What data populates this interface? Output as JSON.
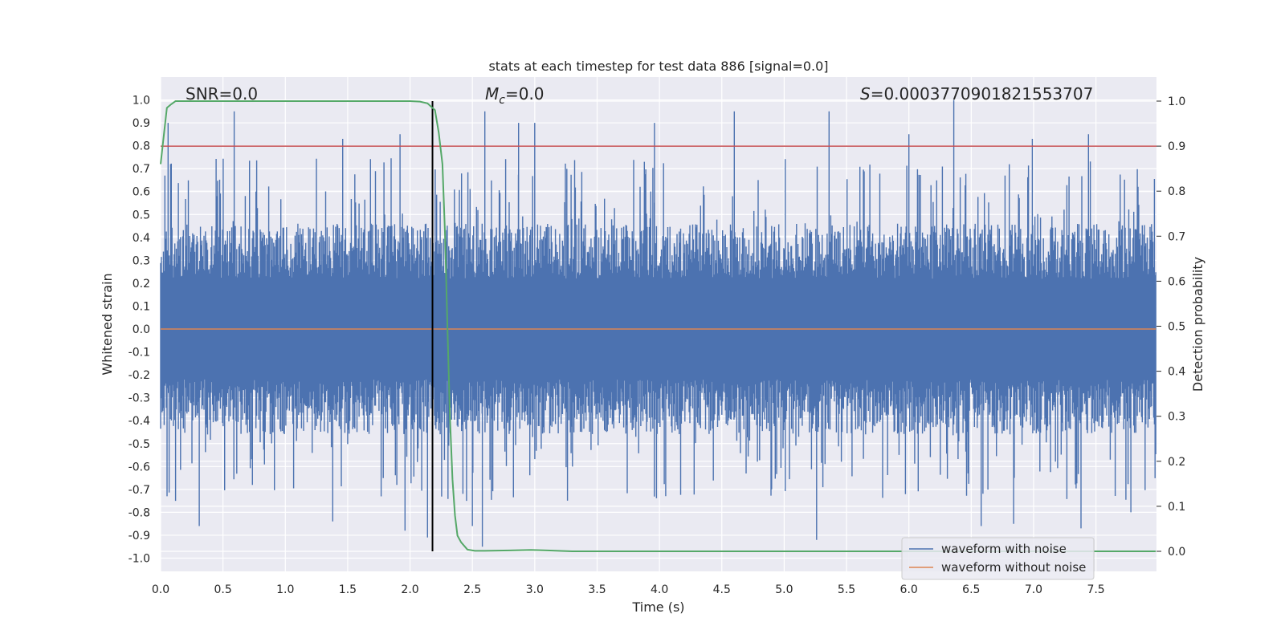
{
  "chart_data": {
    "type": "line",
    "title": "stats at each timestep for test data 886 [signal=0.0]",
    "xlabel": "Time (s)",
    "ylabel_left": "Whitened strain",
    "ylabel_right": "Detection probability",
    "xlim": [
      0.0,
      7.98
    ],
    "ylim_left": [
      -1.05,
      1.05
    ],
    "ylim_right": [
      -0.05,
      1.05
    ],
    "grid": true,
    "x_ticks": [
      0.0,
      0.5,
      1.0,
      1.5,
      2.0,
      2.5,
      3.0,
      3.5,
      4.0,
      4.5,
      5.0,
      5.5,
      6.0,
      6.5,
      7.0,
      7.5
    ],
    "x_tick_labels": [
      "0.0",
      "0.5",
      "1.0",
      "1.5",
      "2.0",
      "2.5",
      "3.0",
      "3.5",
      "4.0",
      "4.5",
      "5.0",
      "5.5",
      "6.0",
      "6.5",
      "7.0",
      "7.5"
    ],
    "y_left_ticks": [
      1.0,
      0.9,
      0.8,
      0.7,
      0.6,
      0.5,
      0.4,
      0.3,
      0.2,
      0.1,
      0.0,
      -0.1,
      -0.2,
      -0.3,
      -0.4,
      -0.5,
      -0.6,
      -0.7,
      -0.8,
      -0.9,
      -1.0
    ],
    "y_left_tick_labels": [
      "1.0",
      "0.9",
      "0.8",
      "0.7",
      "0.6",
      "0.5",
      "0.4",
      "0.3",
      "0.2",
      "0.1",
      "0.0",
      "-0.1",
      "-0.2",
      "-0.3",
      "-0.4",
      "-0.5",
      "-0.6",
      "-0.7",
      "-0.8",
      "-0.9",
      "-1.0"
    ],
    "y_right_ticks": [
      1.0,
      0.9,
      0.8,
      0.7,
      0.6,
      0.5,
      0.4,
      0.3,
      0.2,
      0.1,
      0.0
    ],
    "y_right_tick_labels": [
      "1.0",
      "0.9",
      "0.8",
      "0.7",
      "0.6",
      "0.5",
      "0.4",
      "0.3",
      "0.2",
      "0.1",
      "0.0"
    ],
    "annotations": {
      "snr": "SNR=0.0",
      "mc_symbol": "M",
      "mc_subscript": "c",
      "mc_value": "=0.0",
      "s_symbol": "S",
      "s_value": "=0.0003770901821553707"
    },
    "threshold": {
      "value": 0.9,
      "axis": "right",
      "color": "#c44e52"
    },
    "marker_time": {
      "value": 2.18,
      "color": "#000000"
    },
    "waveform_with_noise": {
      "name": "waveform with noise",
      "color": "#4c72b0",
      "time_range": [
        0.0,
        7.98
      ],
      "typical_envelope": [
        -0.4,
        0.4
      ],
      "extreme_peaks": [
        {
          "t": 0.06,
          "v": 0.9
        },
        {
          "t": 0.59,
          "v": 0.95
        },
        {
          "t": 1.46,
          "v": 0.83
        },
        {
          "t": 1.92,
          "v": 0.85
        },
        {
          "t": 2.6,
          "v": 0.95
        },
        {
          "t": 2.87,
          "v": 0.9
        },
        {
          "t": 3.0,
          "v": 0.9
        },
        {
          "t": 3.96,
          "v": 0.9
        },
        {
          "t": 4.6,
          "v": 0.95
        },
        {
          "t": 5.36,
          "v": 0.95
        },
        {
          "t": 6.0,
          "v": 0.85
        },
        {
          "t": 6.36,
          "v": 1.0
        },
        {
          "t": 6.99,
          "v": 0.83
        },
        {
          "t": 7.44,
          "v": 0.85
        },
        {
          "t": 0.12,
          "v": -0.75
        },
        {
          "t": 0.31,
          "v": -0.86
        },
        {
          "t": 1.38,
          "v": -0.84
        },
        {
          "t": 1.96,
          "v": -0.88
        },
        {
          "t": 2.14,
          "v": -0.91
        },
        {
          "t": 2.5,
          "v": -0.86
        },
        {
          "t": 2.58,
          "v": -0.95
        },
        {
          "t": 5.26,
          "v": -0.92
        },
        {
          "t": 6.58,
          "v": -0.86
        },
        {
          "t": 6.84,
          "v": -0.85
        },
        {
          "t": 7.38,
          "v": -0.87
        },
        {
          "t": 7.78,
          "v": -0.8
        }
      ]
    },
    "waveform_without_noise": {
      "name": "waveform without noise",
      "color": "#dd8452",
      "value": 0.0
    },
    "detection_probability": {
      "color": "#55a868",
      "axis": "right",
      "x": [
        0.0,
        0.02,
        0.05,
        0.08,
        0.12,
        0.2,
        0.5,
        1.0,
        1.5,
        2.0,
        2.08,
        2.14,
        2.2,
        2.23,
        2.26,
        2.28,
        2.3,
        2.32,
        2.34,
        2.36,
        2.38,
        2.41,
        2.46,
        2.52,
        2.6,
        2.8,
        2.97,
        3.1,
        3.3,
        4.0,
        5.0,
        6.0,
        7.0,
        7.98
      ],
      "y": [
        0.86,
        0.91,
        0.985,
        0.992,
        1.0,
        1.0,
        1.0,
        1.0,
        1.0,
        1.0,
        0.999,
        0.995,
        0.98,
        0.93,
        0.86,
        0.71,
        0.5,
        0.3,
        0.16,
        0.08,
        0.035,
        0.02,
        0.004,
        0.001,
        0.001,
        0.002,
        0.003,
        0.002,
        0.0,
        0.0,
        0.0,
        0.0,
        0.0,
        0.0
      ]
    },
    "legend": {
      "position": "lower-right",
      "entries": [
        {
          "label": "waveform with noise",
          "color": "#4c72b0"
        },
        {
          "label": "waveform without noise",
          "color": "#dd8452"
        }
      ]
    }
  }
}
